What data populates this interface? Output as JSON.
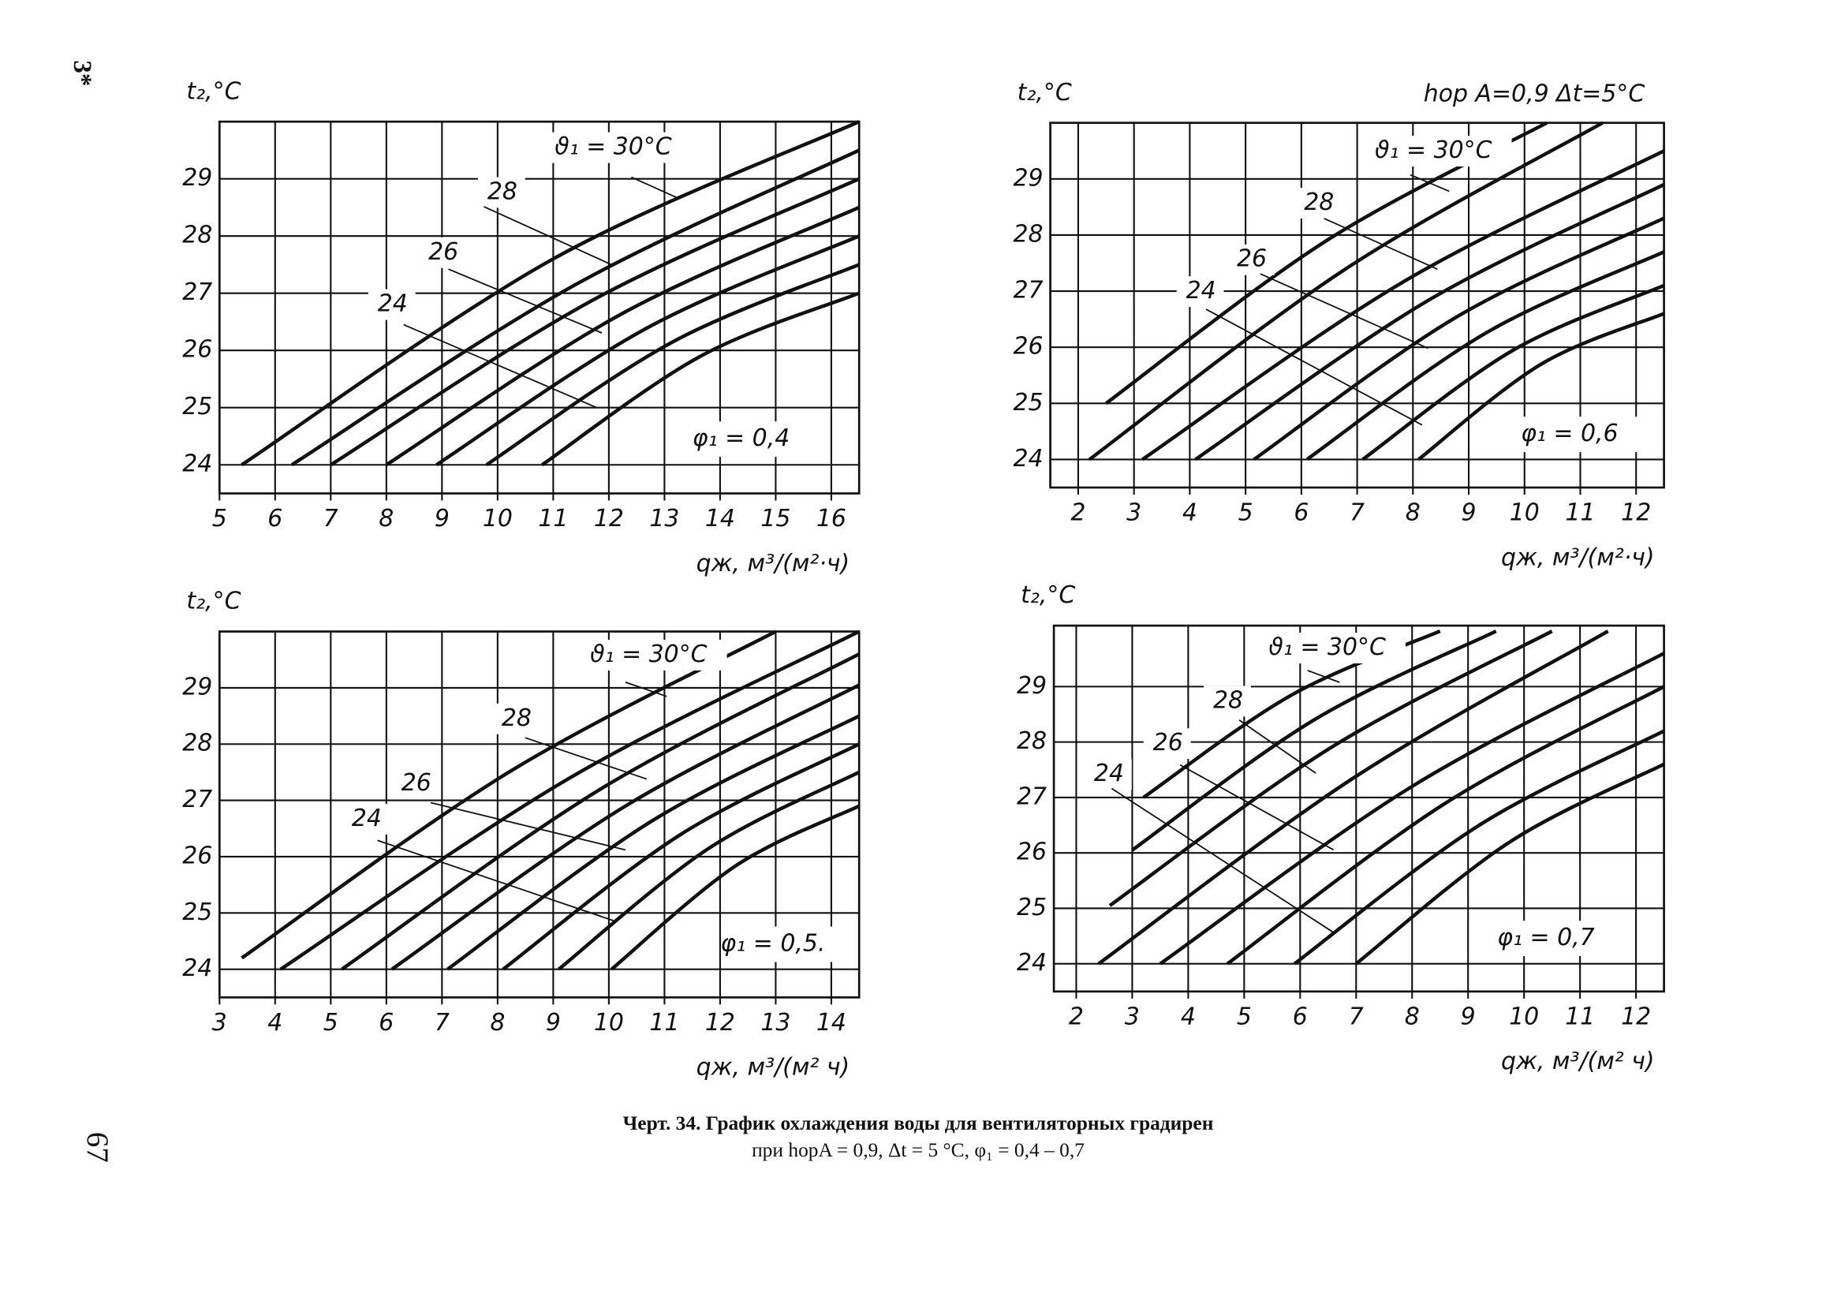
{
  "page": {
    "marginalia": "3*",
    "page_number": "67"
  },
  "caption": {
    "title": "Черт. 34. График охлаждения воды для вентиляторных градирен",
    "subtitle": "при hорA = 0,9, Δt = 5 °C, φ₁ = 0,4 – 0,7"
  },
  "chart_data": [
    {
      "type": "line",
      "y_label": "t₂,°C",
      "x_label": "qж, м³/(м²·ч)",
      "annotation": "φ₁ = 0,4",
      "grid": true,
      "color": "#111",
      "xlim": [
        5,
        16.5
      ],
      "ylim": [
        23.5,
        30
      ],
      "xticks": [
        5,
        6,
        7,
        8,
        9,
        10,
        11,
        12,
        13,
        14,
        15,
        16
      ],
      "yticks": [
        24,
        25,
        26,
        27,
        28,
        29
      ],
      "series": [
        {
          "name": "ϑ₁ = 30°C",
          "x": [
            5.4,
            11,
            16.5
          ],
          "values": [
            24,
            27.6,
            30
          ]
        },
        {
          "x": [
            6.3,
            11.4,
            16.5
          ],
          "values": [
            24,
            27.15,
            29.5
          ]
        },
        {
          "name": "28",
          "x": [
            7.0,
            11.75,
            16.5
          ],
          "values": [
            24,
            26.9,
            29.0
          ]
        },
        {
          "x": [
            8.0,
            12.25,
            16.5
          ],
          "values": [
            24,
            26.65,
            28.5
          ]
        },
        {
          "name": "26",
          "x": [
            8.9,
            12.7,
            16.5
          ],
          "values": [
            24,
            26.4,
            28.0
          ]
        },
        {
          "x": [
            9.8,
            13.15,
            16.5
          ],
          "values": [
            24,
            26.15,
            27.5
          ]
        },
        {
          "name": "24",
          "x": [
            10.8,
            13.65,
            16.5
          ],
          "values": [
            24,
            25.9,
            27.0
          ]
        }
      ]
    },
    {
      "type": "line",
      "y_label": "t₂,°C",
      "x_label": "qж, м³/(м²·ч)",
      "subtitle": "hор A=0,9  Δt=5°C",
      "annotation": "φ₁ = 0,6",
      "grid": true,
      "color": "#111",
      "xlim": [
        1.5,
        12.5
      ],
      "ylim": [
        23.5,
        30
      ],
      "xticks": [
        2,
        3,
        4,
        5,
        6,
        7,
        8,
        9,
        10,
        11,
        12
      ],
      "yticks": [
        24,
        25,
        26,
        27,
        28,
        29
      ],
      "series": [
        {
          "name": "ϑ₁ = 30°C",
          "x": [
            2.5,
            6.45,
            10.4
          ],
          "values": [
            25,
            27.9,
            30
          ]
        },
        {
          "x": [
            2.2,
            6.8,
            11.4
          ],
          "values": [
            24,
            27.4,
            30
          ]
        },
        {
          "name": "28",
          "x": [
            3.15,
            7.8,
            12.5
          ],
          "values": [
            24,
            27.15,
            29.5
          ]
        },
        {
          "x": [
            4.1,
            8.3,
            12.5
          ],
          "values": [
            24,
            26.85,
            28.9
          ]
        },
        {
          "name": "26",
          "x": [
            5.15,
            8.8,
            12.5
          ],
          "values": [
            24,
            26.55,
            28.3
          ]
        },
        {
          "x": [
            6.1,
            9.3,
            12.5
          ],
          "values": [
            24,
            26.25,
            27.7
          ]
        },
        {
          "name": "24",
          "x": [
            7.1,
            9.8,
            12.5
          ],
          "values": [
            24,
            25.95,
            27.1
          ]
        },
        {
          "x": [
            8.1,
            10.3,
            12.5
          ],
          "values": [
            24,
            25.7,
            26.6
          ]
        }
      ]
    },
    {
      "type": "line",
      "y_label": "t₂,°C",
      "x_label": "qж, м³/(м² ч)",
      "annotation": "φ₁ = 0,5.",
      "grid": true,
      "color": "#111",
      "xlim": [
        3,
        14.5
      ],
      "ylim": [
        23.5,
        30
      ],
      "xticks": [
        3,
        4,
        5,
        6,
        7,
        8,
        9,
        10,
        11,
        12,
        13,
        14
      ],
      "yticks": [
        24,
        25,
        26,
        27,
        28,
        29
      ],
      "series": [
        {
          "name": "ϑ₁ = 30°C",
          "x": [
            3.4,
            8.2,
            13.0
          ],
          "values": [
            24.2,
            27.5,
            30
          ]
        },
        {
          "x": [
            4.1,
            9.3,
            14.5
          ],
          "values": [
            24,
            27.4,
            30
          ]
        },
        {
          "name": "28",
          "x": [
            5.2,
            9.85,
            14.5
          ],
          "values": [
            24,
            27.2,
            29.6
          ]
        },
        {
          "x": [
            6.1,
            10.3,
            14.5
          ],
          "values": [
            24,
            26.9,
            29.05
          ]
        },
        {
          "name": "26",
          "x": [
            7.1,
            10.8,
            14.5
          ],
          "values": [
            24,
            26.65,
            28.5
          ]
        },
        {
          "x": [
            8.1,
            11.3,
            14.5
          ],
          "values": [
            24,
            26.4,
            28.0
          ]
        },
        {
          "name": "24",
          "x": [
            9.1,
            11.8,
            14.5
          ],
          "values": [
            24,
            26.15,
            27.5
          ]
        },
        {
          "x": [
            10.05,
            12.3,
            14.5
          ],
          "values": [
            24,
            25.85,
            26.9
          ]
        }
      ]
    },
    {
      "type": "line",
      "y_label": "t₂,°C",
      "x_label": "qж, м³/(м² ч)",
      "annotation": "φ₁ = 0,7",
      "grid": true,
      "color": "#111",
      "xlim": [
        1.6,
        12.5
      ],
      "ylim": [
        23.5,
        30.1
      ],
      "xticks": [
        2,
        3,
        4,
        5,
        6,
        7,
        8,
        9,
        10,
        11,
        12
      ],
      "yticks": [
        24,
        25,
        26,
        27,
        28,
        29
      ],
      "series": [
        {
          "name": "ϑ₁ = 30°C",
          "x": [
            3.2,
            5.85,
            8.5
          ],
          "values": [
            27,
            28.85,
            30
          ]
        },
        {
          "x": [
            3.0,
            6.25,
            9.5
          ],
          "values": [
            26.05,
            28.4,
            30
          ]
        },
        {
          "name": "28",
          "x": [
            2.6,
            6.55,
            10.5
          ],
          "values": [
            25.05,
            27.9,
            30
          ]
        },
        {
          "x": [
            2.4,
            6.95,
            11.5
          ],
          "values": [
            24,
            27.35,
            30
          ]
        },
        {
          "name": "26",
          "x": [
            3.5,
            8.0,
            12.5
          ],
          "values": [
            24,
            27.2,
            29.6
          ]
        },
        {
          "x": [
            4.7,
            8.6,
            12.5
          ],
          "values": [
            24,
            26.9,
            29.0
          ]
        },
        {
          "name": "24",
          "x": [
            5.9,
            9.2,
            12.5
          ],
          "values": [
            24,
            26.5,
            28.2
          ]
        },
        {
          "x": [
            7.0,
            9.75,
            12.5
          ],
          "values": [
            24,
            26.2,
            27.6
          ]
        }
      ]
    }
  ]
}
